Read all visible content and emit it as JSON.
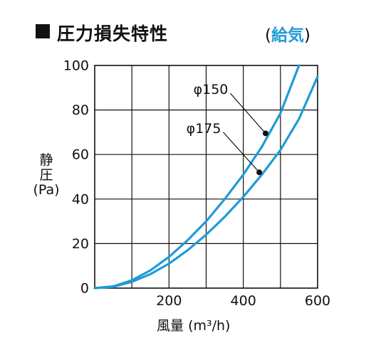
{
  "header": {
    "title": "圧力損失特性",
    "supply_open": "(",
    "supply_word": "給気",
    "supply_close": ")"
  },
  "axes": {
    "ylabel_line1": "静",
    "ylabel_line2": "圧",
    "ylabel_unit": "(Pa)",
    "xlabel_main": "風量",
    "xlabel_unit": "(m³/h)"
  },
  "colors": {
    "curve": "#1f9bd7",
    "grid": "#111111",
    "point": "#111111"
  },
  "chart_data": {
    "type": "line",
    "xlim": [
      0,
      600
    ],
    "ylim": [
      0,
      100
    ],
    "x_ticks": [
      "200",
      "400",
      "600"
    ],
    "x_tick_values": [
      200,
      400,
      600
    ],
    "y_ticks": [
      "0",
      "20",
      "40",
      "60",
      "80",
      "100"
    ],
    "y_tick_values": [
      0,
      20,
      40,
      60,
      80,
      100
    ],
    "grid": true,
    "series": [
      {
        "name": "φ150",
        "x": [
          0,
          50,
          100,
          150,
          200,
          250,
          300,
          350,
          400,
          450,
          500,
          550
        ],
        "y": [
          0,
          0.8,
          3.5,
          8,
          14,
          21.5,
          30,
          40,
          51,
          63.5,
          78.5,
          100
        ],
        "marker": {
          "x": 460,
          "y": 69.5
        },
        "label_anchor": {
          "x": 365,
          "y": 87.5
        }
      },
      {
        "name": "φ175",
        "x": [
          0,
          50,
          100,
          150,
          200,
          250,
          300,
          350,
          400,
          450,
          500,
          550,
          600
        ],
        "y": [
          0,
          0.6,
          2.8,
          6.3,
          11,
          17,
          24,
          32,
          41,
          51,
          62,
          76,
          95
        ],
        "marker": {
          "x": 443,
          "y": 52
        },
        "label_anchor": {
          "x": 346,
          "y": 70
        }
      }
    ]
  }
}
